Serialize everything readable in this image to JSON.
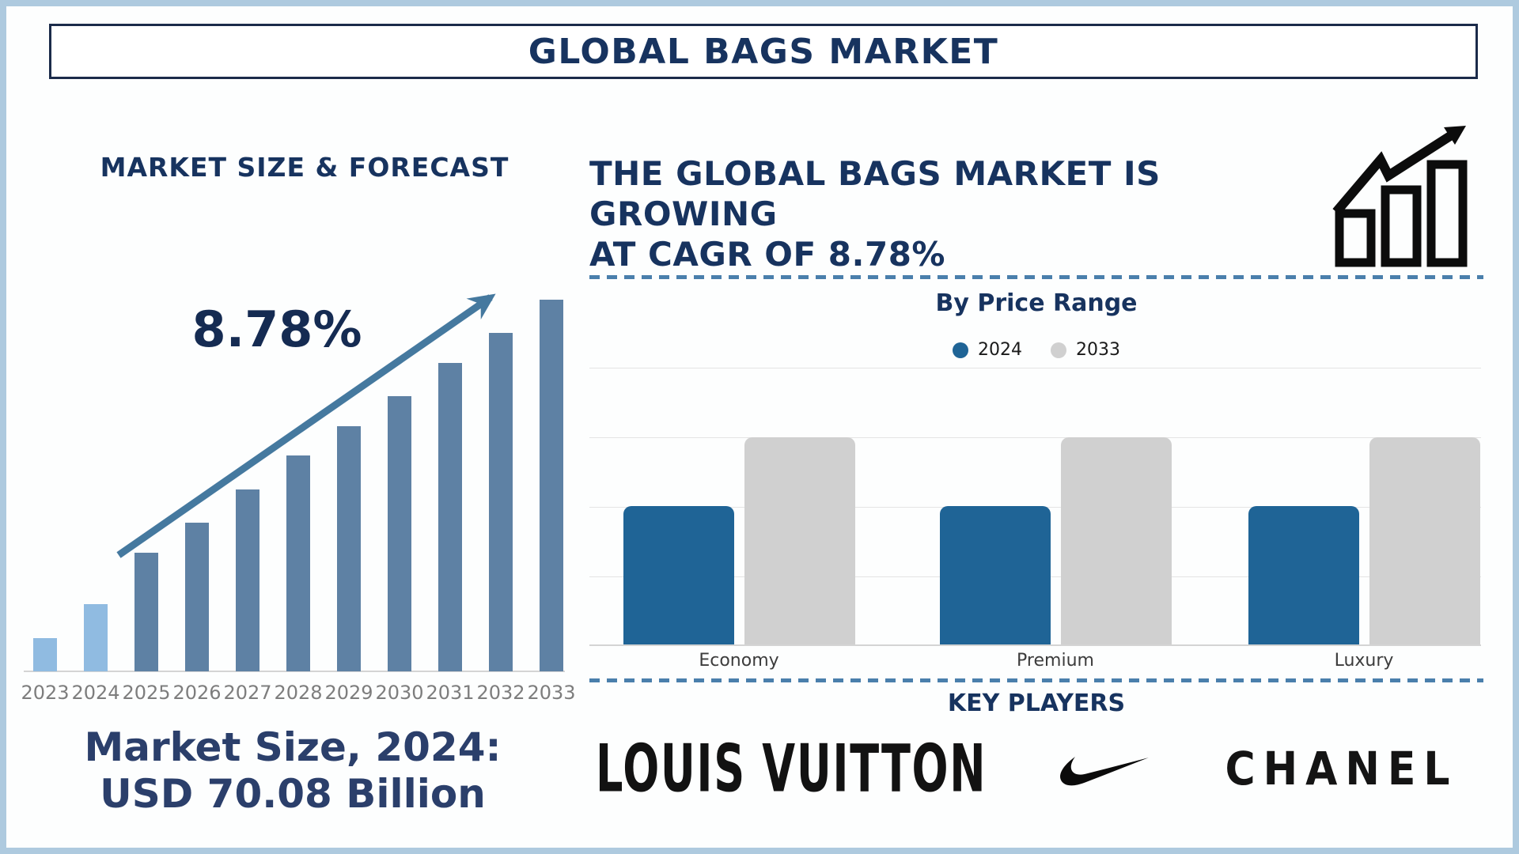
{
  "page": {
    "title": "GLOBAL BAGS MARKET"
  },
  "left_panel": {
    "heading": "MARKET SIZE & FORECAST",
    "cagr_annotation": "8.78%",
    "footer": {
      "line1": "Market Size, 2024:",
      "line2": "USD 70.08 Billion"
    }
  },
  "right_panel": {
    "heading": {
      "line1": "THE GLOBAL BAGS MARKET IS GROWING",
      "line2": "AT CAGR OF 8.78%"
    },
    "growth_icon": "growth-chart-icon",
    "price_section_title": "By Price Range",
    "legend": [
      {
        "label": "2024",
        "color": "#1F6496"
      },
      {
        "label": "2033",
        "color": "#D0D0D0"
      }
    ],
    "key_players_title": "KEY PLAYERS",
    "key_players": [
      "LOUIS VUITTON",
      "Nike swoosh",
      "CHANEL"
    ]
  },
  "chart_data": [
    {
      "type": "bar",
      "title": "MARKET SIZE & FORECAST",
      "categories": [
        "2023",
        "2024",
        "2025",
        "2026",
        "2027",
        "2028",
        "2029",
        "2030",
        "2031",
        "2032",
        "2033"
      ],
      "values": [
        9,
        18,
        32,
        40,
        49,
        58,
        66,
        74,
        83,
        91,
        100
      ],
      "units": "relative bar height, % of 2033 bar (y-axis not labeled)",
      "known_values": {
        "market_size_2024_usd_billion": 70.08,
        "cagr_percent": 8.78
      },
      "annotation": "8.78%",
      "trend_arrow": true,
      "grid": false,
      "xlabel": "",
      "ylabel": "",
      "bar_colors": {
        "2023": "#90BBE1",
        "2024": "#90BBE1",
        "default": "#5E81A4"
      }
    },
    {
      "type": "bar",
      "title": "By Price Range",
      "categories": [
        "Economy",
        "Premium",
        "Luxury"
      ],
      "series": [
        {
          "name": "2024",
          "color": "#1F6496",
          "values": [
            2,
            2,
            2
          ]
        },
        {
          "name": "2033",
          "color": "#D0D0D0",
          "values": [
            3,
            3,
            3
          ]
        }
      ],
      "units": "gridline units (y-axis not labeled)",
      "ylim": [
        0,
        4
      ],
      "grid": true,
      "legend_position": "top"
    }
  ],
  "colors": {
    "page_border": "#AECADF",
    "navy_text": "#17335F",
    "footer_text": "#2B3F6B",
    "forecast_bar_light": "#90BBE1",
    "forecast_bar_steel": "#5E81A4",
    "trend_arrow": "#45799F",
    "price_bar_2024": "#1F6496",
    "price_bar_2033": "#D0D0D0",
    "dashed_separator": "#4A7FAC",
    "gridline": "#E4E4E4",
    "axis_line": "#D4D4D4",
    "year_label": "#7D7D7D",
    "category_label": "#3C3C3C",
    "logo_black": "#121212"
  }
}
